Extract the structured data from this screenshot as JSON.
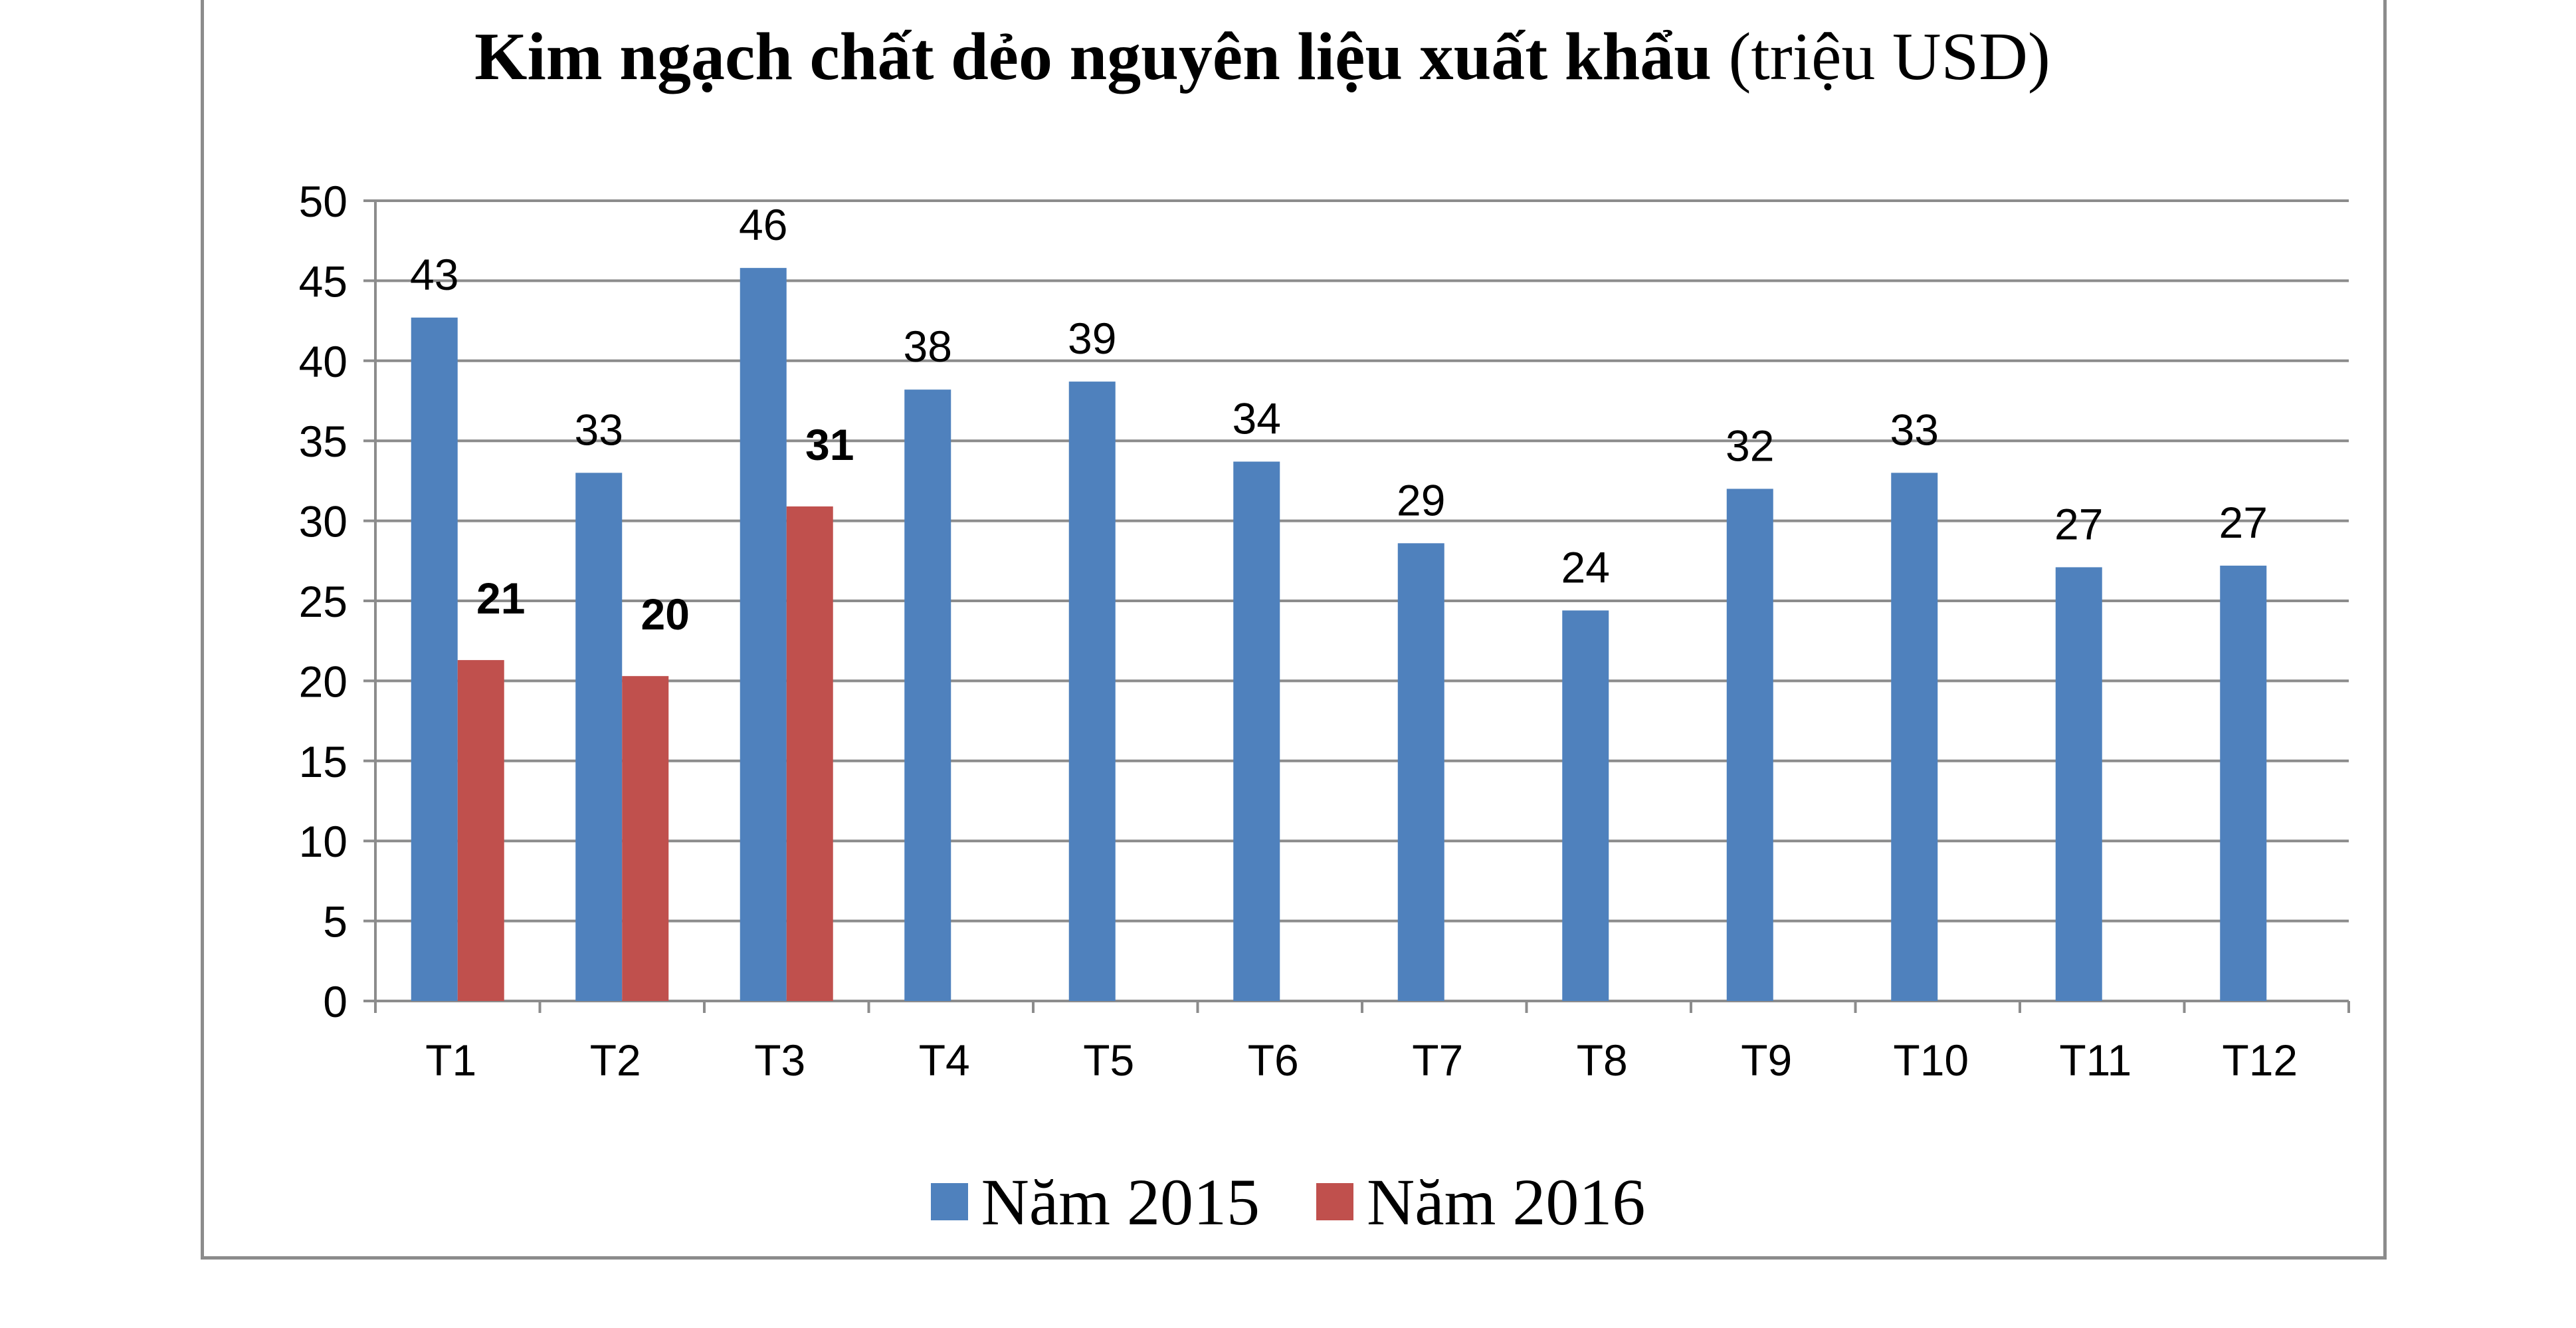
{
  "chart_data": {
    "type": "bar",
    "title_bold": "Kim ngạch chất dẻo nguyên liệu xuất khẩu",
    "title_rest": " (triệu USD)",
    "categories": [
      "T1",
      "T2",
      "T3",
      "T4",
      "T5",
      "T6",
      "T7",
      "T8",
      "T9",
      "T10",
      "T11",
      "T12"
    ],
    "series": [
      {
        "name": "Năm 2015",
        "color": "#4f81bd",
        "values": [
          42.7,
          33.0,
          45.8,
          38.2,
          38.7,
          33.7,
          28.6,
          24.4,
          32.0,
          33.0,
          27.1,
          27.2
        ],
        "labels": [
          "43",
          "33",
          "46",
          "38",
          "39",
          "34",
          "29",
          "24",
          "32",
          "33",
          "27",
          "27"
        ]
      },
      {
        "name": "Năm 2016",
        "color": "#c0504d",
        "values": [
          21.3,
          20.3,
          30.9,
          null,
          null,
          null,
          null,
          null,
          null,
          null,
          null,
          null
        ],
        "labels": [
          "21",
          "20",
          "31",
          "",
          "",
          "",
          "",
          "",
          "",
          "",
          "",
          ""
        ]
      }
    ],
    "y_ticks": [
      "0",
      "5",
      "10",
      "15",
      "20",
      "25",
      "30",
      "35",
      "40",
      "45",
      "50"
    ],
    "ylim": [
      0,
      50
    ],
    "grid": true,
    "legend_position": "bottom"
  }
}
